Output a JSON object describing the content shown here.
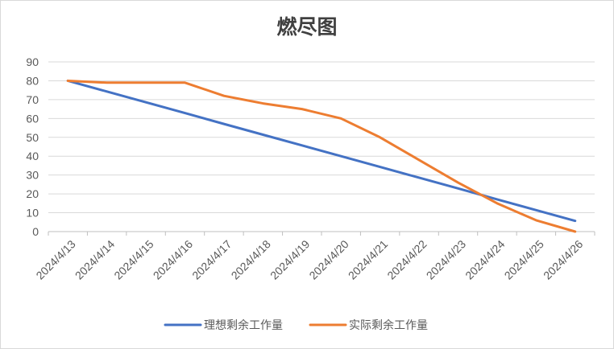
{
  "chart_data": {
    "type": "line",
    "title": "燃尽图",
    "xlabel": "",
    "ylabel": "",
    "categories": [
      "2024/4/13",
      "2024/4/14",
      "2024/4/15",
      "2024/4/16",
      "2024/4/17",
      "2024/4/18",
      "2024/4/19",
      "2024/4/20",
      "2024/4/21",
      "2024/4/22",
      "2024/4/23",
      "2024/4/24",
      "2024/4/25",
      "2024/4/26"
    ],
    "ylim": [
      0,
      90
    ],
    "yticks": [
      0,
      10,
      20,
      30,
      40,
      50,
      60,
      70,
      80,
      90
    ],
    "grid": true,
    "legend": "bottom",
    "series": [
      {
        "name": "理想剩余工作量",
        "color": "#4472C4",
        "values": [
          80,
          74.3,
          68.6,
          62.9,
          57.1,
          51.4,
          45.7,
          40,
          34.3,
          28.6,
          22.9,
          17.1,
          11.4,
          5.7
        ]
      },
      {
        "name": "实际剩余工作量",
        "color": "#ED7D31",
        "values": [
          80,
          79,
          79,
          79,
          72,
          68,
          65,
          60,
          50,
          38,
          26,
          15,
          6,
          0
        ]
      }
    ]
  }
}
